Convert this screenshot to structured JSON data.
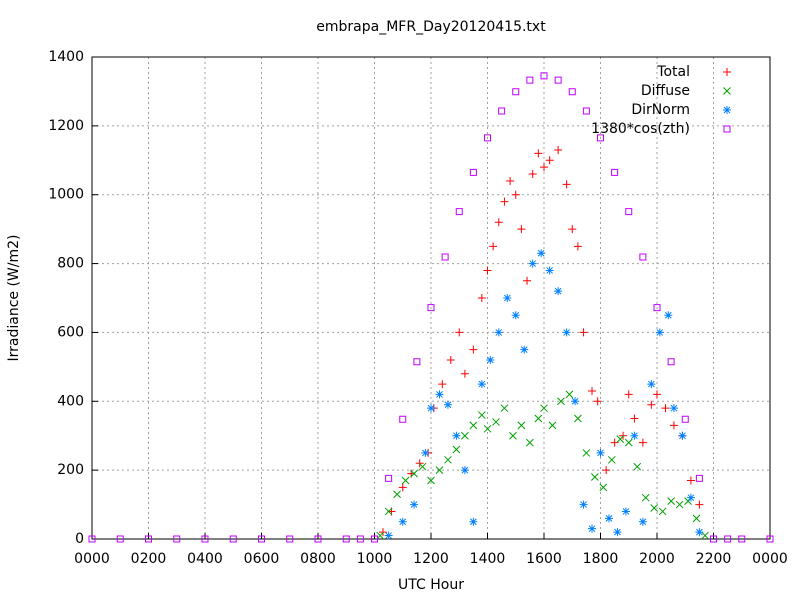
{
  "chart_data": {
    "type": "scatter",
    "title": "embrapa_MFR_Day20120415.txt",
    "xlabel": "UTC Hour",
    "ylabel": "Irradiance (W/m2)",
    "xlim": [
      0,
      24
    ],
    "ylim": [
      0,
      1400
    ],
    "xticks": [
      {
        "value": 0,
        "label": "0000"
      },
      {
        "value": 2,
        "label": "0200"
      },
      {
        "value": 4,
        "label": "0400"
      },
      {
        "value": 6,
        "label": "0600"
      },
      {
        "value": 8,
        "label": "0800"
      },
      {
        "value": 10,
        "label": "1000"
      },
      {
        "value": 12,
        "label": "1200"
      },
      {
        "value": 14,
        "label": "1400"
      },
      {
        "value": 16,
        "label": "1600"
      },
      {
        "value": 18,
        "label": "1800"
      },
      {
        "value": 20,
        "label": "2000"
      },
      {
        "value": 22,
        "label": "2200"
      },
      {
        "value": 24,
        "label": "0000"
      }
    ],
    "yticks": [
      0,
      200,
      400,
      600,
      800,
      1000,
      1200,
      1400
    ],
    "grid": true,
    "legend": "top-right",
    "series": [
      {
        "name": "Total",
        "color": "#ff0000",
        "marker": "plus",
        "x": [
          10.3,
          10.6,
          11,
          11.3,
          11.6,
          11.9,
          12.1,
          12.4,
          12.7,
          13,
          13.2,
          13.5,
          13.8,
          14,
          14.2,
          14.4,
          14.6,
          14.8,
          15,
          15.2,
          15.4,
          15.6,
          15.8,
          16,
          16.2,
          16.5,
          16.8,
          17,
          17.2,
          17.4,
          17.7,
          17.9,
          18.2,
          18.5,
          18.8,
          19,
          19.2,
          19.5,
          19.8,
          20,
          20.3,
          20.6,
          20.9,
          21.2,
          21.5
        ],
        "values": [
          20,
          80,
          150,
          190,
          220,
          250,
          380,
          450,
          520,
          600,
          480,
          550,
          700,
          780,
          850,
          920,
          980,
          1040,
          1000,
          900,
          750,
          1060,
          1120,
          1080,
          1100,
          1130,
          1030,
          900,
          850,
          600,
          430,
          400,
          200,
          280,
          300,
          420,
          350,
          280,
          390,
          420,
          380,
          330,
          300,
          170,
          100
        ]
      },
      {
        "name": "Diffuse",
        "color": "#00a000",
        "marker": "cross",
        "x": [
          10.2,
          10.5,
          10.8,
          11.1,
          11.4,
          11.7,
          12,
          12.3,
          12.6,
          12.9,
          13.2,
          13.5,
          13.8,
          14,
          14.3,
          14.6,
          14.9,
          15.2,
          15.5,
          15.8,
          16,
          16.3,
          16.6,
          16.9,
          17.2,
          17.5,
          17.8,
          18.1,
          18.4,
          18.7,
          19,
          19.3,
          19.6,
          19.9,
          20.2,
          20.5,
          20.8,
          21.1,
          21.4,
          21.7
        ],
        "values": [
          10,
          80,
          130,
          170,
          190,
          210,
          170,
          200,
          230,
          260,
          300,
          330,
          360,
          320,
          340,
          380,
          300,
          330,
          280,
          350,
          380,
          330,
          400,
          420,
          350,
          250,
          180,
          150,
          230,
          290,
          280,
          210,
          120,
          90,
          80,
          110,
          100,
          110,
          60,
          10
        ]
      },
      {
        "name": "DirNorm",
        "color": "#0080ff",
        "marker": "star",
        "x": [
          10.5,
          11,
          11.4,
          11.8,
          12,
          12.3,
          12.6,
          12.9,
          13.2,
          13.5,
          13.8,
          14.1,
          14.4,
          14.7,
          15,
          15.3,
          15.6,
          15.9,
          16.2,
          16.5,
          16.8,
          17.1,
          17.4,
          17.7,
          18,
          18.3,
          18.6,
          18.9,
          19.2,
          19.5,
          19.8,
          20.1,
          20.4,
          20.6,
          20.9,
          21.2,
          21.5
        ],
        "values": [
          10,
          50,
          100,
          250,
          380,
          420,
          390,
          300,
          200,
          50,
          450,
          520,
          600,
          700,
          650,
          550,
          800,
          830,
          780,
          720,
          600,
          400,
          100,
          30,
          250,
          60,
          20,
          80,
          300,
          50,
          450,
          600,
          650,
          380,
          300,
          120,
          20
        ]
      },
      {
        "name": "1380*cos(zth)",
        "color": "#c000ff",
        "marker": "square",
        "x": [
          0,
          1,
          2,
          3,
          4,
          5,
          6,
          7,
          8,
          9,
          9.5,
          10,
          10.5,
          11,
          11.5,
          12,
          12.5,
          13,
          13.5,
          14,
          14.5,
          15,
          15.5,
          16,
          16.5,
          17,
          17.5,
          18,
          18.5,
          19,
          19.5,
          20,
          20.5,
          21,
          21.5,
          22,
          22.5,
          23,
          24
        ],
        "values": [
          0,
          0,
          0,
          0,
          0,
          0,
          0,
          0,
          0,
          0,
          0,
          0,
          176,
          348,
          515,
          672,
          819,
          951,
          1065,
          1165,
          1243,
          1299,
          1333,
          1345,
          1333,
          1299,
          1243,
          1165,
          1065,
          951,
          819,
          672,
          515,
          348,
          176,
          0,
          0,
          0,
          0
        ]
      }
    ]
  }
}
